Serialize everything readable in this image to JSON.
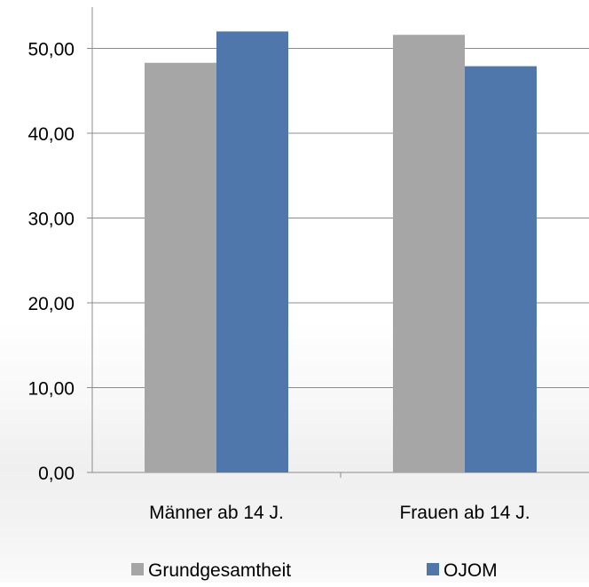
{
  "chart_data": {
    "type": "bar",
    "categories": [
      "Männer ab 14 J.",
      "Frauen ab 14 J."
    ],
    "series": [
      {
        "name": "Grundgesamtheit",
        "values": [
          48.3,
          51.6
        ]
      },
      {
        "name": "OJOM",
        "values": [
          52.0,
          47.9
        ]
      }
    ],
    "colors": [
      "#a6a6a6",
      "#4f77ab"
    ],
    "ylim": [
      0,
      55
    ],
    "yticks": [
      "0,00",
      "10,00",
      "20,00",
      "30,00",
      "40,00",
      "50,00"
    ],
    "ytick_values": [
      0,
      10,
      20,
      30,
      40,
      50
    ],
    "grid": true,
    "legend_position": "bottom"
  }
}
